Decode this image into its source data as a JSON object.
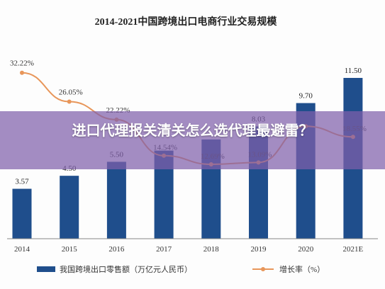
{
  "overlay": {
    "headline": "进口代理报关清关怎么选代理最避雷？"
  },
  "chart_data": {
    "type": "bar",
    "title": "2014-2021中国跨境出口电商行业交易规模",
    "categories": [
      "2014",
      "2015",
      "2016",
      "2017",
      "2018",
      "2019",
      "2020",
      "2021E"
    ],
    "series": [
      {
        "name": "我国跨境出口零售额（万亿元人民币）",
        "type": "bar",
        "values": [
          3.57,
          4.5,
          5.5,
          6.3,
          7.1,
          8.03,
          9.7,
          11.5
        ],
        "labels": [
          "3.57",
          "4.50",
          "5.50",
          "",
          "",
          "8.03",
          "9.70",
          "11.50"
        ],
        "color": "#1f4e8c"
      },
      {
        "name": "增长率（%）",
        "type": "line",
        "values": [
          32.22,
          26.05,
          22.22,
          14.54,
          12.69,
          13.09,
          20.8,
          18.55
        ],
        "labels": [
          "32.22%",
          "26.05%",
          "22.22%",
          "14.54%",
          "12.69%",
          "13.09%",
          "",
          "18.55%"
        ],
        "color": "#e8965a"
      }
    ],
    "ylim": [
      0,
      13
    ],
    "y2lim": [
      0,
      40
    ],
    "grid": false,
    "legend": "bottom"
  }
}
